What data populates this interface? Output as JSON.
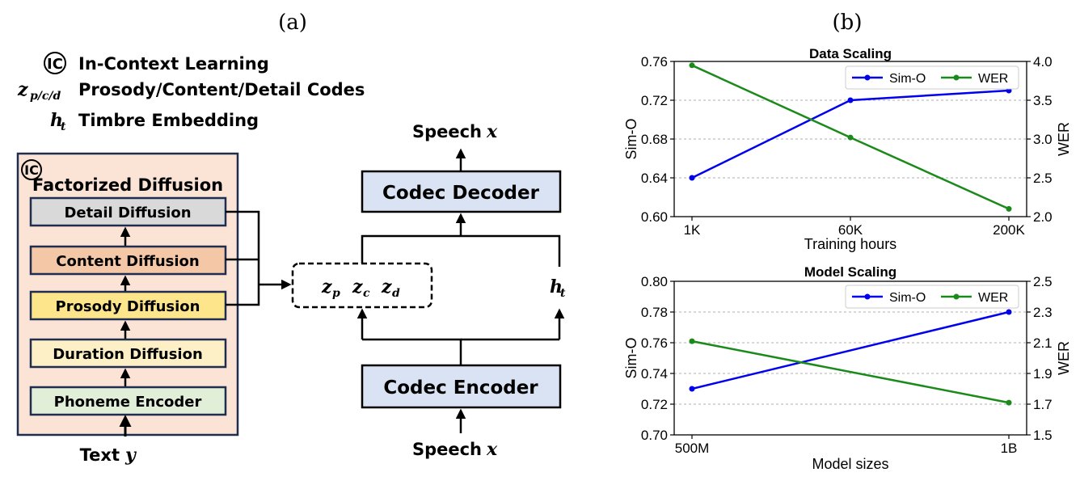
{
  "panel_a": {
    "label": "(a)",
    "legend": {
      "ic_symbol": "IC",
      "ic_text": "In-Context Learning",
      "z_symbol": "z",
      "z_sub": "p/c/d",
      "z_text": "Prosody/Content/Detail Codes",
      "h_symbol": "h",
      "h_sub": "t",
      "h_text": "Timbre Embedding"
    },
    "fd_box": {
      "ic_symbol": "IC",
      "title": "Factorized Diffusion",
      "modules": {
        "detail": {
          "label": "Detail Diffusion",
          "color": "#d9d9d9"
        },
        "content": {
          "label": "Content Diffusion",
          "color": "#f4c7a6"
        },
        "prosody": {
          "label": "Prosody Diffusion",
          "color": "#fde58c"
        },
        "duration": {
          "label": "Duration Diffusion",
          "color": "#fdf0c6"
        },
        "phoneme": {
          "label": "Phoneme Encoder",
          "color": "#e1eed8"
        }
      }
    },
    "text_input": {
      "word": "Text",
      "var": "y"
    },
    "codes": {
      "p": "p",
      "c": "c",
      "d": "d",
      "z": "z"
    },
    "codec_decoder": "Codec Decoder",
    "codec_encoder": "Codec Encoder",
    "speech_out": {
      "word": "Speech",
      "var": "x"
    },
    "speech_in": {
      "word": "Speech",
      "var": "x"
    },
    "timbre": {
      "sym": "h",
      "sub": "t"
    }
  },
  "panel_b": {
    "label": "(b)",
    "legend_sim": "Sim-O",
    "legend_wer": "WER",
    "colors": {
      "sim": "#0000ee",
      "wer": "#1a8a1a"
    }
  },
  "chart_data": [
    {
      "type": "line",
      "title": "Data Scaling",
      "xlabel": "Training hours",
      "ylabel": "Sim-O",
      "y2label": "WER",
      "categories": [
        "1K",
        "60K",
        "200K"
      ],
      "series": [
        {
          "name": "Sim-O",
          "axis": "left",
          "values": [
            0.64,
            0.72,
            0.73
          ]
        },
        {
          "name": "WER",
          "axis": "right",
          "values": [
            3.95,
            3.02,
            2.1
          ]
        }
      ],
      "ylim": [
        0.6,
        0.76
      ],
      "yticks": [
        "0.60",
        "0.64",
        "0.68",
        "0.72",
        "0.76"
      ],
      "y2lim": [
        2.0,
        4.0
      ],
      "y2ticks": [
        "2.0",
        "2.5",
        "3.0",
        "3.5",
        "4.0"
      ],
      "grid": true,
      "legend": "top-right"
    },
    {
      "type": "line",
      "title": "Model Scaling",
      "xlabel": "Model sizes",
      "ylabel": "Sim-O",
      "y2label": "WER",
      "categories": [
        "500M",
        "1B"
      ],
      "series": [
        {
          "name": "Sim-O",
          "axis": "left",
          "values": [
            0.73,
            0.78
          ]
        },
        {
          "name": "WER",
          "axis": "right",
          "values": [
            2.11,
            1.71
          ]
        }
      ],
      "ylim": [
        0.7,
        0.8
      ],
      "yticks": [
        "0.70",
        "0.72",
        "0.74",
        "0.76",
        "0.78",
        "0.80"
      ],
      "y2lim": [
        1.5,
        2.5
      ],
      "y2ticks": [
        "1.5",
        "1.7",
        "1.9",
        "2.1",
        "2.3",
        "2.5"
      ],
      "grid": true,
      "legend": "top-right"
    }
  ]
}
